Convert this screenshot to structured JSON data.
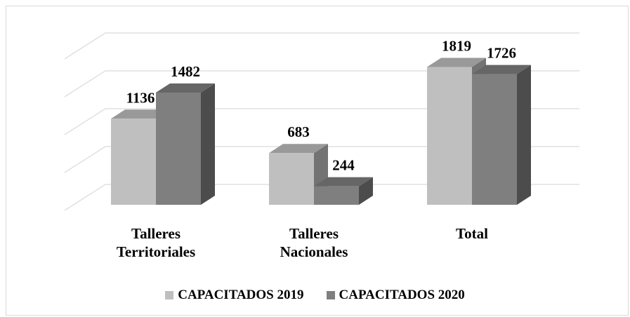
{
  "chart_data": {
    "type": "bar3d",
    "categories": [
      "Talleres Territoriales",
      "Talleres Nacionales",
      "Total"
    ],
    "series": [
      {
        "name": "CAPACITADOS 2019",
        "color": "#bfbfbf",
        "values": [
          1136,
          683,
          1819
        ]
      },
      {
        "name": "CAPACITADOS 2020",
        "color": "#7f7f7f",
        "values": [
          1482,
          244,
          1726
        ]
      }
    ],
    "ylim": [
      0,
      2000
    ],
    "yticks": [
      0,
      500,
      1000,
      1500,
      2000
    ],
    "grid": true,
    "legend": "bottom"
  }
}
